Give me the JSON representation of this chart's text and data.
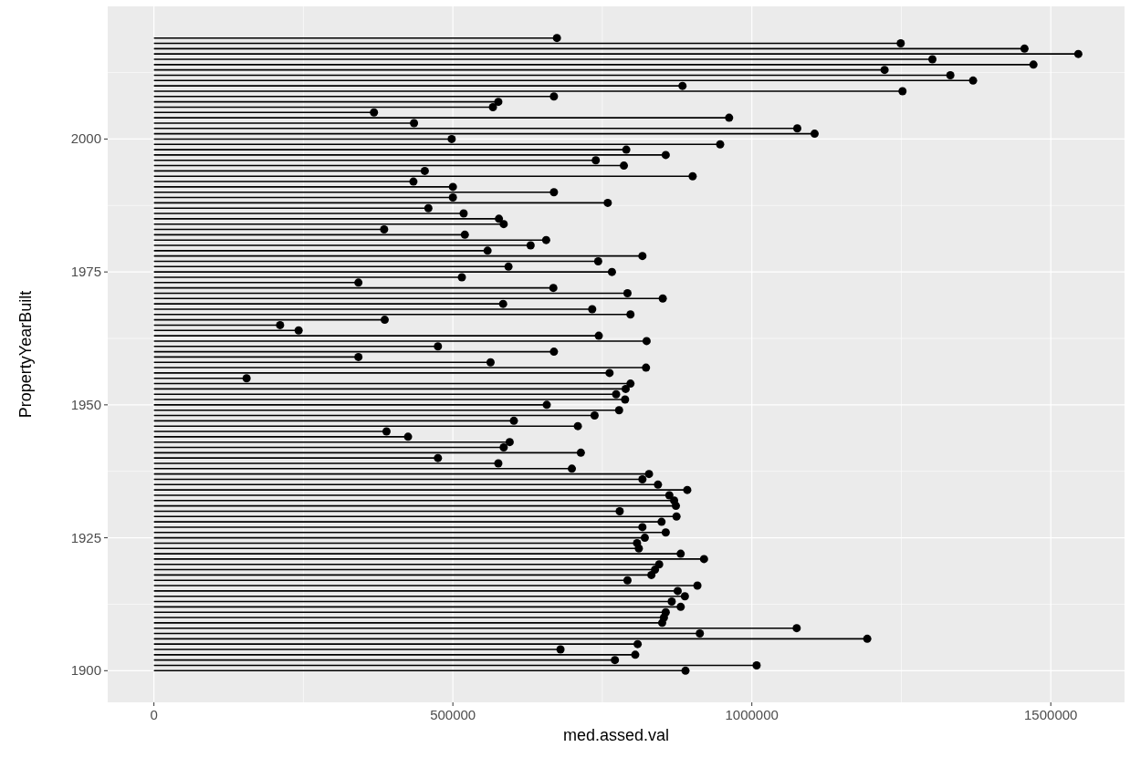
{
  "chart_data": {
    "type": "lollipop",
    "orientation": "horizontal",
    "xlabel": "med.assed.val",
    "ylabel": "PropertyYearBuilt",
    "x": [
      2019,
      2018,
      2017,
      2016,
      2015,
      2014,
      2013,
      2012,
      2011,
      2010,
      2009,
      2008,
      2007,
      2006,
      2005,
      2004,
      2003,
      2002,
      2001,
      2000,
      1999,
      1998,
      1997,
      1996,
      1995,
      1994,
      1993,
      1992,
      1991,
      1990,
      1989,
      1988,
      1987,
      1986,
      1985,
      1984,
      1983,
      1982,
      1981,
      1980,
      1979,
      1978,
      1977,
      1976,
      1975,
      1974,
      1973,
      1972,
      1971,
      1970,
      1969,
      1968,
      1967,
      1966,
      1965,
      1964,
      1963,
      1962,
      1961,
      1960,
      1959,
      1958,
      1957,
      1956,
      1955,
      1954,
      1953,
      1952,
      1951,
      1950,
      1949,
      1948,
      1947,
      1946,
      1945,
      1944,
      1943,
      1942,
      1941,
      1940,
      1939,
      1938,
      1937,
      1936,
      1935,
      1934,
      1933,
      1932,
      1931,
      1930,
      1929,
      1928,
      1927,
      1926,
      1925,
      1924,
      1923,
      1922,
      1921,
      1920,
      1919,
      1918,
      1917,
      1916,
      1915,
      1914,
      1913,
      1912,
      1911,
      1910,
      1909,
      1908,
      1907,
      1906,
      1905,
      1904,
      1903,
      1902,
      1901,
      1900
    ],
    "values": [
      674000,
      1249000,
      1456000,
      1546000,
      1302000,
      1471000,
      1222000,
      1332000,
      1370000,
      884000,
      1252000,
      669000,
      576000,
      567000,
      368000,
      962000,
      435000,
      1076000,
      1105000,
      498000,
      947000,
      790000,
      856000,
      739000,
      786000,
      453000,
      901000,
      434000,
      500000,
      669000,
      500000,
      759000,
      459000,
      518000,
      577000,
      585000,
      385000,
      520000,
      656000,
      630000,
      558000,
      817000,
      743000,
      593000,
      766000,
      515000,
      342000,
      668000,
      792000,
      851000,
      584000,
      733000,
      797000,
      386000,
      211000,
      242000,
      744000,
      824000,
      475000,
      669000,
      342000,
      563000,
      823000,
      762000,
      155000,
      797000,
      789000,
      773000,
      788000,
      657000,
      778000,
      737000,
      602000,
      709000,
      389000,
      425000,
      595000,
      585000,
      714000,
      475000,
      576000,
      699000,
      828000,
      817000,
      843000,
      892000,
      862000,
      870000,
      873000,
      779000,
      874000,
      849000,
      817000,
      856000,
      821000,
      808000,
      811000,
      881000,
      920000,
      845000,
      838000,
      832000,
      792000,
      909000,
      876000,
      888000,
      866000,
      881000,
      856000,
      853000,
      850000,
      1075000,
      913000,
      1193000,
      809000,
      680000,
      805000,
      771000,
      1008000,
      889000
    ],
    "color": "#000000",
    "marker": "circle",
    "xlim": [
      -77300,
      1623300
    ],
    "xticks": [
      0,
      500000,
      1000000,
      1500000
    ],
    "ylim": [
      1894.05,
      2024.95
    ],
    "yticks": [
      1900,
      1925,
      1950,
      1975,
      2000
    ],
    "grid": true
  }
}
